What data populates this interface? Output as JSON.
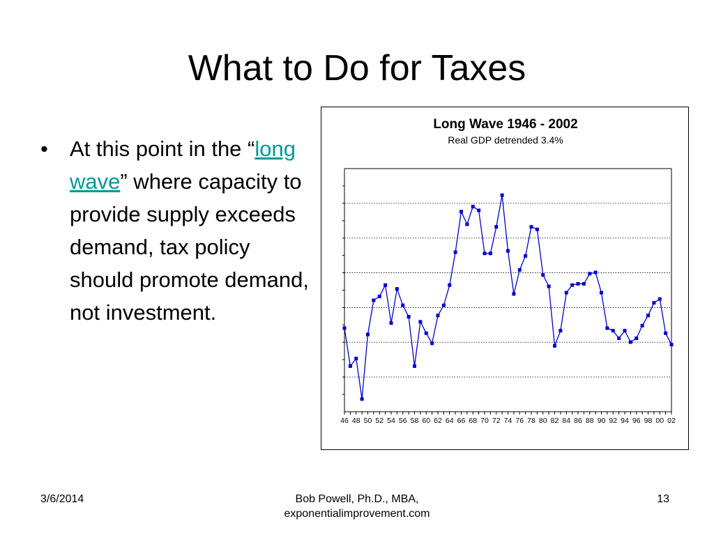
{
  "slide": {
    "title": "What to Do for Taxes",
    "bullet_symbol": "•",
    "bullet_pre": "At this point in the “",
    "bullet_link": "long wave",
    "bullet_post": "” where capacity to provide supply exceeds demand, tax policy should promote demand, not investment."
  },
  "footer": {
    "date": "3/6/2014",
    "author_line1": "Bob Powell, Ph.D., MBA,",
    "author_line2": "exponentialimprovement.com",
    "page": "13"
  },
  "colors": {
    "link": "#009999",
    "series": "#0000CC"
  },
  "chart_data": {
    "type": "line",
    "title": "Long Wave 1946 - 2002",
    "subtitle": "Real GDP detrended 3.4%",
    "x": [
      46,
      47,
      48,
      49,
      50,
      51,
      52,
      53,
      54,
      55,
      56,
      57,
      58,
      59,
      60,
      61,
      62,
      63,
      64,
      65,
      66,
      67,
      68,
      69,
      70,
      71,
      72,
      73,
      74,
      75,
      76,
      77,
      78,
      79,
      80,
      81,
      82,
      83,
      84,
      85,
      86,
      87,
      88,
      89,
      90,
      91,
      92,
      93,
      94,
      95,
      96,
      97,
      98,
      99,
      100,
      101,
      102
    ],
    "x_tick_labels": [
      "46",
      "48",
      "50",
      "52",
      "54",
      "56",
      "58",
      "60",
      "62",
      "64",
      "66",
      "68",
      "70",
      "72",
      "74",
      "76",
      "78",
      "80",
      "82",
      "84",
      "86",
      "88",
      "90",
      "92",
      "94",
      "96",
      "98",
      "00",
      "02"
    ],
    "series": [
      {
        "values": [
          0.3,
          -1.2,
          -0.9,
          -2.5,
          0.05,
          1.4,
          1.55,
          2.0,
          0.5,
          1.85,
          1.2,
          0.75,
          -1.2,
          0.55,
          0.1,
          -0.3,
          0.8,
          1.2,
          2.0,
          3.3,
          4.9,
          4.4,
          5.1,
          4.95,
          3.25,
          3.25,
          4.3,
          5.55,
          3.35,
          1.65,
          2.6,
          3.15,
          4.3,
          4.2,
          2.4,
          1.95,
          -0.4,
          0.2,
          1.7,
          2.0,
          2.05,
          2.05,
          2.45,
          2.5,
          1.7,
          0.3,
          0.2,
          -0.1,
          0.2,
          -0.25,
          -0.1,
          0.4,
          0.8,
          1.3,
          1.45,
          0.1,
          -0.35
        ]
      }
    ],
    "ylim": [
      -3,
      6.6
    ],
    "grid": true,
    "legend": "none"
  }
}
